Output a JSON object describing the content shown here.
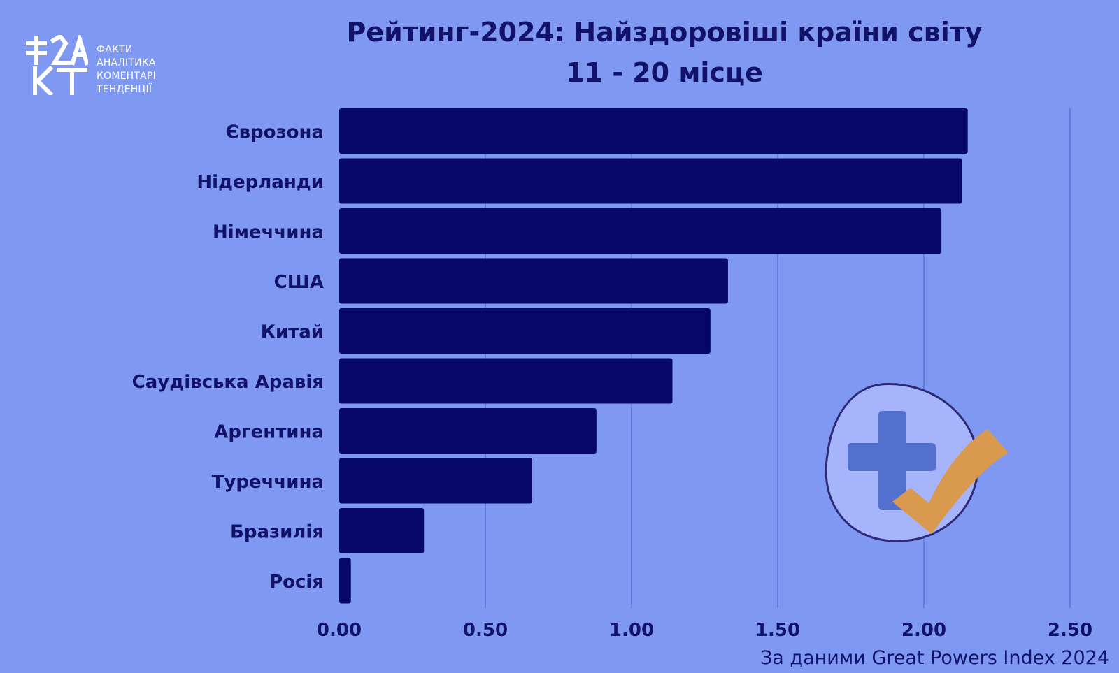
{
  "brand": {
    "lines": [
      "ФАКТИ",
      "АНАЛІТИКА",
      "КОМЕНТАРІ",
      "ТЕНДЕНЦІЇ"
    ]
  },
  "header": {
    "title": "Рейтинг-2024: Найздоровіші країни світу",
    "subtitle": "11 - 20 місце"
  },
  "footer": {
    "source": "За даними Great Powers Index 2024"
  },
  "colors": {
    "background": "#7f98f2",
    "bar": "#070768",
    "grid": "#5c72d9",
    "text": "#12126a",
    "badge_circle": "#a6b4fb",
    "badge_cross": "#5470cf",
    "badge_check": "#d99a50"
  },
  "icons": {
    "logo": "fakt-logo",
    "badge": "health-cross-check-badge"
  },
  "chart_data": {
    "type": "bar",
    "orientation": "horizontal",
    "categories": [
      "Єврозона",
      "Нідерланди",
      "Німеччина",
      "США",
      "Китай",
      "Саудівська Аравія",
      "Аргентина",
      "Туреччина",
      "Бразилія",
      "Росія"
    ],
    "values": [
      2.15,
      2.13,
      2.06,
      1.33,
      1.27,
      1.14,
      0.88,
      0.66,
      0.29,
      0.04
    ],
    "xlim": [
      0,
      2.5
    ],
    "xticks": [
      0.0,
      0.5,
      1.0,
      1.5,
      2.0,
      2.5
    ],
    "xtick_labels": [
      "0.00",
      "0.50",
      "1.00",
      "1.50",
      "2.00",
      "2.50"
    ],
    "grid": "vertical",
    "title": "Рейтинг-2024: Найздоровіші країни світу",
    "subtitle": "11 - 20 місце",
    "xlabel": "",
    "ylabel": ""
  }
}
